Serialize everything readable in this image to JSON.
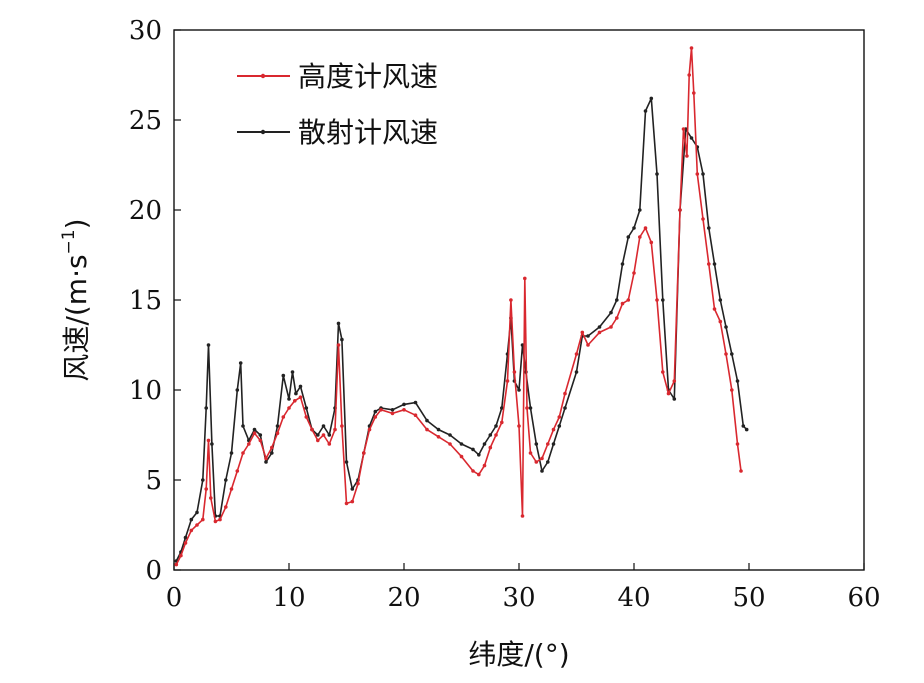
{
  "chart_data": {
    "type": "line",
    "xlabel": "纬度/(°)",
    "ylabel": "风速/(m·s",
    "ylabel_sup": "−1",
    "ylabel_close": ")",
    "xlim": [
      0,
      60
    ],
    "ylim": [
      0,
      30
    ],
    "xticks": [
      "0",
      "10",
      "20",
      "30",
      "40",
      "50",
      "60"
    ],
    "yticks": [
      "0",
      "5",
      "10",
      "15",
      "20",
      "25",
      "30"
    ],
    "grid": false,
    "legend_position": "top-left",
    "series": [
      {
        "name": "高度计风速",
        "color": "#d9282f",
        "x": [
          0.2,
          0.6,
          1.0,
          1.5,
          2.0,
          2.5,
          2.8,
          3.0,
          3.2,
          3.6,
          4.0,
          4.5,
          5.0,
          5.5,
          6.0,
          6.5,
          7.0,
          7.5,
          8.0,
          8.5,
          9.0,
          9.5,
          10.0,
          10.5,
          11.0,
          11.5,
          12.0,
          12.5,
          13.0,
          13.5,
          14.0,
          14.3,
          14.6,
          15.0,
          15.5,
          16.0,
          16.5,
          17.0,
          17.5,
          18.0,
          19.0,
          20.0,
          21.0,
          22.0,
          23.0,
          24.0,
          25.0,
          26.0,
          26.5,
          27.0,
          27.5,
          28.0,
          28.5,
          29.0,
          29.3,
          29.6,
          30.0,
          30.3,
          30.5,
          30.7,
          31.0,
          31.5,
          32.0,
          32.5,
          33.0,
          33.5,
          34.0,
          35.0,
          35.5,
          36.0,
          37.0,
          38.0,
          38.5,
          39.0,
          39.5,
          40.0,
          40.5,
          41.0,
          41.5,
          42.0,
          42.5,
          43.0,
          43.5,
          44.0,
          44.3,
          44.6,
          44.8,
          45.0,
          45.2,
          45.5,
          46.0,
          46.5,
          47.0,
          47.5,
          48.0,
          48.5,
          49.0,
          49.3
        ],
        "y": [
          0.3,
          0.8,
          1.5,
          2.2,
          2.5,
          2.8,
          4.5,
          7.2,
          4.0,
          2.7,
          2.8,
          3.5,
          4.5,
          5.5,
          6.5,
          7.0,
          7.6,
          7.2,
          6.2,
          6.8,
          7.6,
          8.5,
          9.0,
          9.4,
          9.6,
          8.5,
          7.8,
          7.2,
          7.5,
          7.0,
          7.8,
          12.5,
          8.0,
          3.7,
          3.8,
          4.8,
          6.5,
          7.8,
          8.5,
          8.9,
          8.7,
          8.9,
          8.6,
          7.8,
          7.4,
          7.0,
          6.3,
          5.5,
          5.3,
          5.8,
          6.8,
          7.5,
          8.2,
          10.5,
          15.0,
          11.0,
          8.0,
          3.0,
          16.2,
          9.0,
          6.5,
          6.0,
          6.2,
          7.0,
          7.8,
          8.5,
          9.8,
          12.0,
          13.2,
          12.5,
          13.2,
          13.5,
          14.0,
          14.8,
          15.0,
          16.5,
          18.5,
          19.0,
          18.2,
          15.0,
          11.0,
          9.8,
          10.5,
          20.0,
          24.5,
          23.0,
          27.5,
          29.0,
          26.5,
          22.0,
          19.5,
          17.0,
          14.5,
          13.8,
          12.0,
          10.0,
          7.0,
          5.5
        ]
      },
      {
        "name": "散射计风速",
        "color": "#222222",
        "x": [
          0.2,
          0.6,
          1.0,
          1.5,
          2.0,
          2.5,
          2.8,
          3.0,
          3.3,
          3.6,
          4.0,
          4.5,
          5.0,
          5.5,
          5.8,
          6.0,
          6.5,
          7.0,
          7.5,
          8.0,
          8.5,
          9.0,
          9.5,
          10.0,
          10.3,
          10.6,
          11.0,
          11.5,
          12.0,
          12.5,
          13.0,
          13.5,
          14.0,
          14.3,
          14.6,
          15.0,
          15.5,
          16.0,
          16.5,
          17.0,
          17.5,
          18.0,
          19.0,
          20.0,
          21.0,
          22.0,
          23.0,
          24.0,
          25.0,
          26.0,
          26.5,
          27.0,
          27.5,
          28.0,
          28.5,
          29.0,
          29.3,
          29.6,
          30.0,
          30.3,
          30.6,
          31.0,
          31.5,
          32.0,
          32.5,
          33.0,
          33.5,
          34.0,
          35.0,
          35.5,
          36.0,
          37.0,
          38.0,
          38.5,
          39.0,
          39.5,
          40.0,
          40.5,
          41.0,
          41.5,
          42.0,
          42.5,
          43.0,
          43.5,
          44.0,
          44.5,
          45.0,
          45.5,
          46.0,
          46.5,
          47.0,
          47.5,
          48.0,
          48.5,
          49.0,
          49.5,
          49.8
        ],
        "y": [
          0.5,
          1.0,
          1.8,
          2.8,
          3.2,
          5.0,
          9.0,
          12.5,
          7.0,
          3.0,
          3.0,
          5.0,
          6.5,
          10.0,
          11.5,
          8.0,
          7.2,
          7.8,
          7.5,
          6.0,
          6.5,
          8.0,
          10.8,
          9.5,
          11.0,
          9.8,
          10.2,
          9.0,
          7.8,
          7.5,
          8.0,
          7.5,
          9.0,
          13.7,
          12.8,
          6.0,
          4.5,
          5.0,
          6.5,
          8.0,
          8.8,
          9.0,
          8.9,
          9.2,
          9.3,
          8.3,
          7.8,
          7.5,
          7.0,
          6.7,
          6.4,
          7.0,
          7.5,
          8.0,
          9.0,
          12.0,
          14.0,
          10.5,
          10.0,
          12.5,
          11.0,
          9.0,
          7.0,
          5.5,
          6.0,
          7.0,
          8.0,
          9.0,
          11.0,
          13.0,
          13.0,
          13.5,
          14.3,
          15.0,
          17.0,
          18.5,
          19.0,
          20.0,
          25.5,
          26.2,
          22.0,
          15.0,
          10.0,
          9.5,
          20.0,
          24.5,
          24.0,
          23.5,
          22.0,
          19.0,
          17.0,
          15.0,
          13.5,
          12.0,
          10.5,
          8.0,
          7.8
        ]
      }
    ]
  }
}
